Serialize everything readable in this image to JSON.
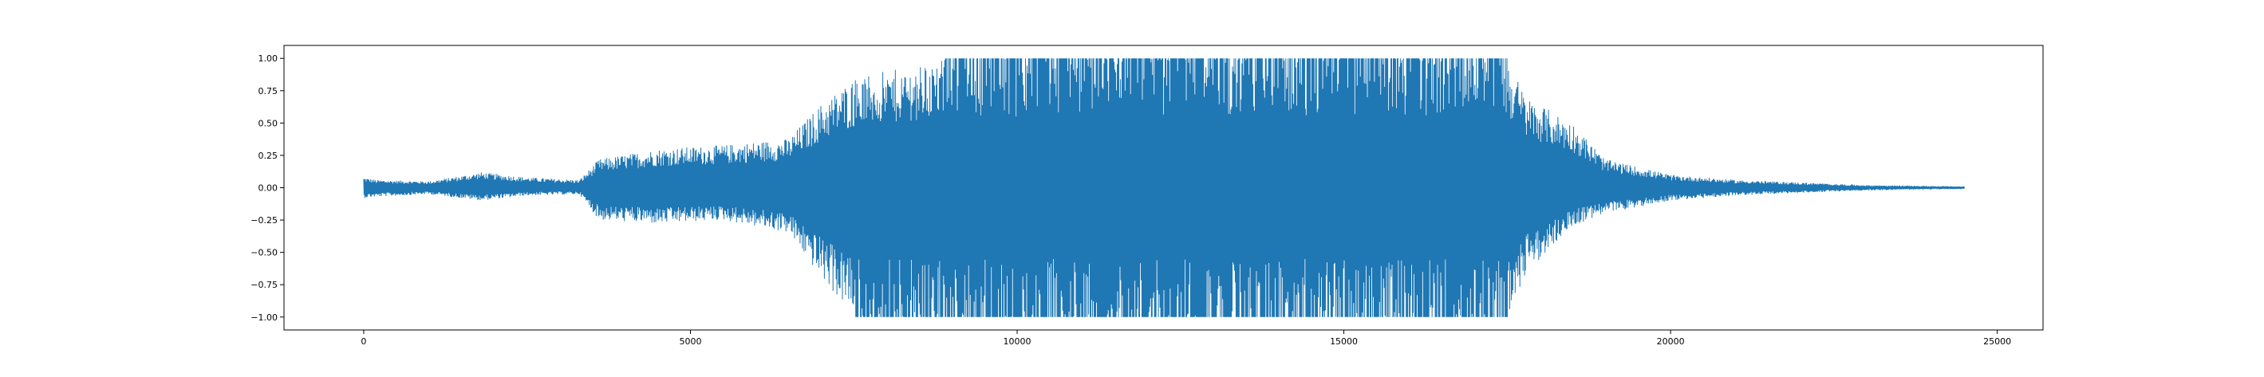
{
  "chart_data": {
    "type": "line",
    "title": "",
    "xlabel": "",
    "ylabel": "",
    "xlim": [
      -1220,
      25700
    ],
    "ylim": [
      -1.1,
      1.1
    ],
    "grid": false,
    "legend": "none",
    "x_ticks": [
      {
        "value": 0,
        "label": "0"
      },
      {
        "value": 5000,
        "label": "5000"
      },
      {
        "value": 10000,
        "label": "10000"
      },
      {
        "value": 15000,
        "label": "15000"
      },
      {
        "value": 20000,
        "label": "20000"
      },
      {
        "value": 25000,
        "label": "25000"
      }
    ],
    "y_ticks": [
      {
        "value": 1.0,
        "label": "1.00"
      },
      {
        "value": 0.75,
        "label": "0.75"
      },
      {
        "value": 0.5,
        "label": "0.50"
      },
      {
        "value": 0.25,
        "label": "0.25"
      },
      {
        "value": 0.0,
        "label": "0.00"
      },
      {
        "value": -0.25,
        "label": "−0.25"
      },
      {
        "value": -0.5,
        "label": "−0.50"
      },
      {
        "value": -0.75,
        "label": "−0.75"
      },
      {
        "value": -1.0,
        "label": "−1.00"
      }
    ],
    "series": [
      {
        "color": "#1f77b4",
        "n_samples": 24500,
        "x_start": 0,
        "x_end": 24500,
        "envelope": [
          {
            "x": 0,
            "pos": 0.08,
            "neg": -0.08
          },
          {
            "x": 200,
            "pos": 0.06,
            "neg": -0.07
          },
          {
            "x": 1000,
            "pos": 0.05,
            "neg": -0.05
          },
          {
            "x": 1800,
            "pos": 0.12,
            "neg": -0.1
          },
          {
            "x": 2500,
            "pos": 0.08,
            "neg": -0.06
          },
          {
            "x": 3300,
            "pos": 0.06,
            "neg": -0.05
          },
          {
            "x": 3600,
            "pos": 0.22,
            "neg": -0.25
          },
          {
            "x": 4500,
            "pos": 0.3,
            "neg": -0.28
          },
          {
            "x": 5500,
            "pos": 0.33,
            "neg": -0.25
          },
          {
            "x": 6500,
            "pos": 0.38,
            "neg": -0.35
          },
          {
            "x": 7000,
            "pos": 0.65,
            "neg": -0.7
          },
          {
            "x": 7500,
            "pos": 0.85,
            "neg": -1.0
          },
          {
            "x": 8500,
            "pos": 0.95,
            "neg": -1.0
          },
          {
            "x": 9000,
            "pos": 1.0,
            "neg": -1.0
          },
          {
            "x": 12000,
            "pos": 1.0,
            "neg": -1.0
          },
          {
            "x": 15000,
            "pos": 1.0,
            "neg": -1.0
          },
          {
            "x": 17500,
            "pos": 1.0,
            "neg": -1.0
          },
          {
            "x": 17800,
            "pos": 0.7,
            "neg": -0.65
          },
          {
            "x": 18500,
            "pos": 0.5,
            "neg": -0.3
          },
          {
            "x": 19000,
            "pos": 0.22,
            "neg": -0.2
          },
          {
            "x": 20000,
            "pos": 0.1,
            "neg": -0.1
          },
          {
            "x": 21000,
            "pos": 0.06,
            "neg": -0.06
          },
          {
            "x": 22000,
            "pos": 0.04,
            "neg": -0.04
          },
          {
            "x": 23000,
            "pos": 0.02,
            "neg": -0.02
          },
          {
            "x": 24500,
            "pos": 0.01,
            "neg": -0.01
          }
        ]
      }
    ]
  }
}
